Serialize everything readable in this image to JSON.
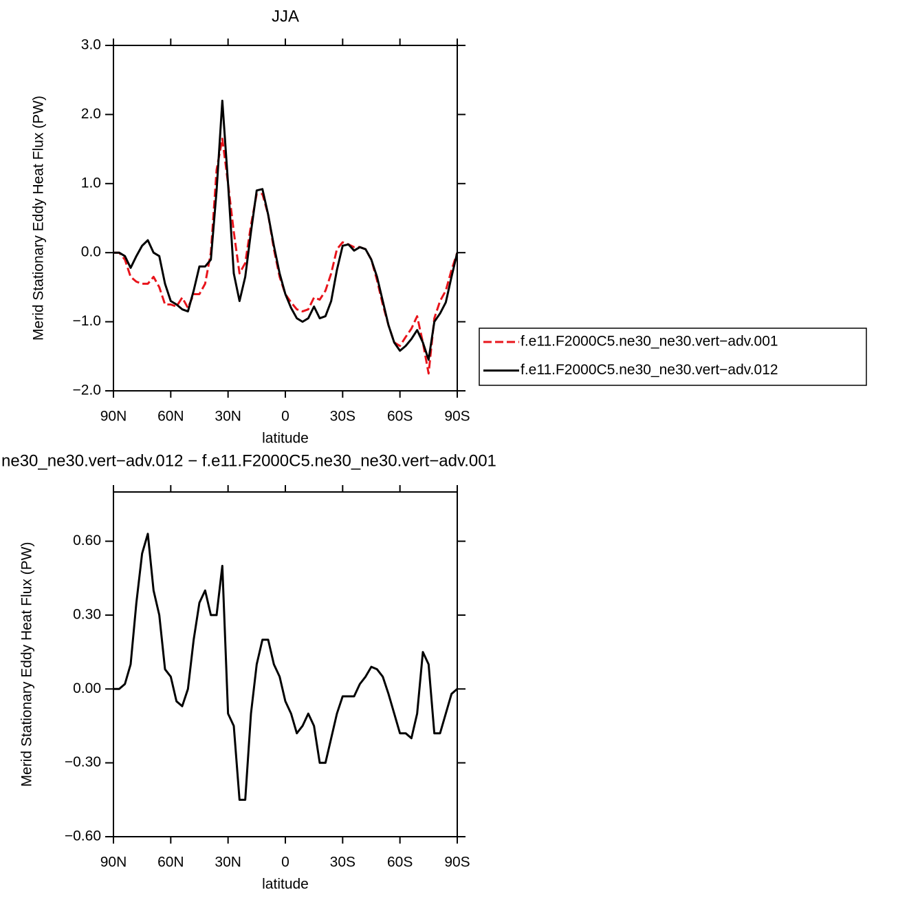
{
  "chart_data": [
    {
      "type": "line",
      "title": "JJA",
      "xlabel": "latitude",
      "ylabel": "Merid Stationary Eddy Heat Flux (PW)",
      "xlim": [
        90,
        -90
      ],
      "xticks": [
        {
          "value": 90,
          "label": "90N"
        },
        {
          "value": 60,
          "label": "60N"
        },
        {
          "value": 30,
          "label": "30N"
        },
        0,
        {
          "value": -30,
          "label": "30S"
        },
        {
          "value": -60,
          "label": "60S"
        },
        {
          "value": -90,
          "label": "90S"
        }
      ],
      "ylim": [
        -2,
        3
      ],
      "yticks": [
        {
          "value": -2,
          "label": "−2.0"
        },
        {
          "value": -1,
          "label": "−1.0"
        },
        {
          "value": 0,
          "label": "0.0"
        },
        {
          "value": 1,
          "label": "1.0"
        },
        {
          "value": 2,
          "label": "2.0"
        },
        {
          "value": 3,
          "label": "3.0"
        }
      ],
      "legend": "right",
      "x": [
        90,
        87,
        84,
        81,
        78,
        75,
        72,
        69,
        66,
        63,
        60,
        57,
        54,
        51,
        48,
        45,
        42,
        39,
        36,
        33,
        30,
        27,
        24,
        21,
        18,
        15,
        12,
        9,
        6,
        3,
        0,
        -3,
        -6,
        -9,
        -12,
        -15,
        -18,
        -21,
        -24,
        -27,
        -30,
        -33,
        -36,
        -39,
        -42,
        -45,
        -48,
        -51,
        -54,
        -57,
        -60,
        -63,
        -66,
        -69,
        -72,
        -75,
        -78,
        -81,
        -84,
        -87,
        -90
      ],
      "series": [
        {
          "name": "f.e11.F2000C5.ne30_ne30.vert−adv.001",
          "color": "#e8141b",
          "linestyle": "dashed",
          "values": [
            0,
            0,
            -0.1,
            -0.35,
            -0.42,
            -0.45,
            -0.45,
            -0.35,
            -0.5,
            -0.75,
            -0.75,
            -0.78,
            -0.65,
            -0.8,
            -0.6,
            -0.6,
            -0.45,
            0.0,
            1.2,
            1.65,
            1.0,
            0.3,
            -0.3,
            -0.15,
            0.4,
            0.85,
            0.85,
            0.55,
            0.05,
            -0.35,
            -0.6,
            -0.72,
            -0.82,
            -0.85,
            -0.82,
            -0.65,
            -0.68,
            -0.55,
            -0.3,
            0.05,
            0.15,
            0.12,
            0.08,
            0.08,
            0.05,
            -0.1,
            -0.4,
            -0.75,
            -1.05,
            -1.3,
            -1.35,
            -1.22,
            -1.1,
            -0.92,
            -1.3,
            -1.75,
            -0.95,
            -0.7,
            -0.55,
            -0.25,
            0
          ]
        },
        {
          "name": "f.e11.F2000C5.ne30_ne30.vert−adv.012",
          "color": "#000000",
          "linestyle": "solid",
          "values": [
            0,
            0,
            -0.05,
            -0.22,
            -0.05,
            0.1,
            0.18,
            0.0,
            -0.05,
            -0.45,
            -0.7,
            -0.75,
            -0.82,
            -0.85,
            -0.55,
            -0.2,
            -0.2,
            -0.1,
            0.9,
            2.2,
            1.0,
            -0.3,
            -0.7,
            -0.35,
            0.3,
            0.9,
            0.92,
            0.55,
            0.1,
            -0.3,
            -0.6,
            -0.8,
            -0.95,
            -1.0,
            -0.95,
            -0.78,
            -0.95,
            -0.92,
            -0.7,
            -0.25,
            0.1,
            0.12,
            0.03,
            0.08,
            0.05,
            -0.1,
            -0.35,
            -0.7,
            -1.05,
            -1.3,
            -1.42,
            -1.35,
            -1.25,
            -1.12,
            -1.3,
            -1.55,
            -1.0,
            -0.88,
            -0.72,
            -0.35,
            0
          ]
        }
      ]
    },
    {
      "type": "line",
      "title": "ne30_ne30.vert−adv.012 − f.e11.F2000C5.ne30_ne30.vert−adv.001",
      "xlabel": "latitude",
      "ylabel": "Merid Stationary Eddy Heat Flux (PW)",
      "xlim": [
        90,
        -90
      ],
      "xticks": [
        {
          "value": 90,
          "label": "90N"
        },
        {
          "value": 60,
          "label": "60N"
        },
        {
          "value": 30,
          "label": "30N"
        },
        0,
        {
          "value": -30,
          "label": "30S"
        },
        {
          "value": -60,
          "label": "60S"
        },
        {
          "value": -90,
          "label": "90S"
        }
      ],
      "ylim": [
        -0.6,
        0.8
      ],
      "yticks": [
        {
          "value": -0.6,
          "label": "−0.60"
        },
        {
          "value": -0.3,
          "label": "−0.30"
        },
        {
          "value": 0,
          "label": "0.00"
        },
        {
          "value": 0.3,
          "label": "0.30"
        },
        {
          "value": 0.6,
          "label": "0.60"
        }
      ],
      "x": [
        90,
        87,
        84,
        81,
        78,
        75,
        72,
        69,
        66,
        63,
        60,
        57,
        54,
        51,
        48,
        45,
        42,
        39,
        36,
        33,
        30,
        27,
        24,
        21,
        18,
        15,
        12,
        9,
        6,
        3,
        0,
        -3,
        -6,
        -9,
        -12,
        -15,
        -18,
        -21,
        -24,
        -27,
        -30,
        -33,
        -36,
        -39,
        -42,
        -45,
        -48,
        -51,
        -54,
        -57,
        -60,
        -63,
        -66,
        -69,
        -72,
        -75,
        -78,
        -81,
        -84,
        -87,
        -90
      ],
      "color": "#000000",
      "values": [
        0,
        0,
        0.02,
        0.1,
        0.35,
        0.55,
        0.63,
        0.4,
        0.3,
        0.08,
        0.05,
        -0.05,
        -0.07,
        0.0,
        0.2,
        0.35,
        0.4,
        0.3,
        0.3,
        0.5,
        -0.1,
        -0.15,
        -0.45,
        -0.45,
        -0.1,
        0.1,
        0.2,
        0.2,
        0.1,
        0.05,
        -0.05,
        -0.1,
        -0.18,
        -0.15,
        -0.1,
        -0.15,
        -0.3,
        -0.3,
        -0.2,
        -0.1,
        -0.03,
        -0.03,
        -0.03,
        0.02,
        0.05,
        0.09,
        0.08,
        0.05,
        -0.02,
        -0.1,
        -0.18,
        -0.18,
        -0.2,
        -0.1,
        0.15,
        0.1,
        -0.18,
        -0.18,
        -0.1,
        -0.02,
        0
      ]
    }
  ]
}
